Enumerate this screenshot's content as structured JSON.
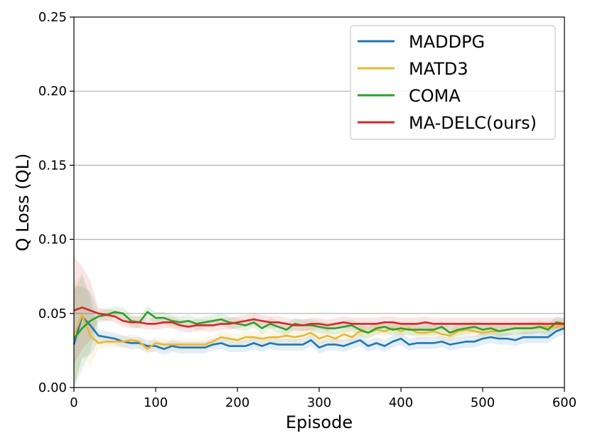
{
  "chart_data": {
    "type": "line",
    "xlabel": "Episode",
    "ylabel": "Q Loss (QL)",
    "xlim": [
      0,
      600
    ],
    "ylim": [
      0,
      0.25
    ],
    "xticks": [
      0,
      100,
      200,
      300,
      400,
      500,
      600
    ],
    "xtick_labels": [
      "0",
      "100",
      "200",
      "300",
      "400",
      "500",
      "600"
    ],
    "yticks": [
      0.0,
      0.05,
      0.1,
      0.15,
      0.2,
      0.25
    ],
    "ytick_labels": [
      "0.00",
      "0.05",
      "0.10",
      "0.15",
      "0.20",
      "0.25"
    ],
    "grid": "horizontal",
    "legend_position": "top-right",
    "x": [
      0,
      10,
      20,
      30,
      40,
      50,
      60,
      70,
      80,
      90,
      100,
      110,
      120,
      130,
      140,
      150,
      160,
      170,
      180,
      190,
      200,
      210,
      220,
      230,
      240,
      250,
      260,
      270,
      280,
      290,
      300,
      310,
      320,
      330,
      340,
      350,
      360,
      370,
      380,
      390,
      400,
      410,
      420,
      430,
      440,
      450,
      460,
      470,
      480,
      490,
      500,
      510,
      520,
      530,
      540,
      550,
      560,
      570,
      580,
      590,
      600
    ],
    "series": [
      {
        "name": "MADDPG",
        "color": "#1f77b4",
        "values": [
          0.029,
          0.048,
          0.042,
          0.035,
          0.034,
          0.033,
          0.031,
          0.03,
          0.03,
          0.028,
          0.028,
          0.026,
          0.028,
          0.027,
          0.027,
          0.027,
          0.027,
          0.029,
          0.03,
          0.028,
          0.028,
          0.028,
          0.03,
          0.028,
          0.03,
          0.029,
          0.029,
          0.029,
          0.029,
          0.032,
          0.027,
          0.029,
          0.029,
          0.028,
          0.03,
          0.032,
          0.028,
          0.03,
          0.028,
          0.031,
          0.033,
          0.029,
          0.03,
          0.03,
          0.03,
          0.031,
          0.029,
          0.03,
          0.031,
          0.031,
          0.033,
          0.034,
          0.033,
          0.033,
          0.032,
          0.034,
          0.034,
          0.034,
          0.034,
          0.038,
          0.04
        ]
      },
      {
        "name": "MATD3",
        "color": "#ebb630",
        "values": [
          0.035,
          0.049,
          0.035,
          0.03,
          0.031,
          0.031,
          0.031,
          0.032,
          0.031,
          0.026,
          0.03,
          0.029,
          0.029,
          0.029,
          0.029,
          0.029,
          0.029,
          0.031,
          0.034,
          0.033,
          0.032,
          0.034,
          0.034,
          0.033,
          0.034,
          0.034,
          0.035,
          0.034,
          0.035,
          0.037,
          0.033,
          0.035,
          0.033,
          0.036,
          0.034,
          0.038,
          0.037,
          0.039,
          0.038,
          0.04,
          0.038,
          0.04,
          0.037,
          0.037,
          0.038,
          0.036,
          0.035,
          0.038,
          0.039,
          0.038,
          0.037,
          0.038,
          0.038,
          0.039,
          0.04,
          0.04,
          0.04,
          0.041,
          0.041,
          0.041,
          0.042
        ]
      },
      {
        "name": "COMA",
        "color": "#2ca02c",
        "values": [
          0.033,
          0.04,
          0.045,
          0.048,
          0.049,
          0.051,
          0.05,
          0.045,
          0.044,
          0.051,
          0.047,
          0.047,
          0.045,
          0.044,
          0.045,
          0.043,
          0.044,
          0.045,
          0.046,
          0.044,
          0.043,
          0.042,
          0.044,
          0.04,
          0.043,
          0.041,
          0.039,
          0.043,
          0.042,
          0.042,
          0.041,
          0.04,
          0.04,
          0.041,
          0.042,
          0.039,
          0.037,
          0.04,
          0.041,
          0.039,
          0.04,
          0.039,
          0.039,
          0.039,
          0.039,
          0.041,
          0.037,
          0.039,
          0.04,
          0.041,
          0.039,
          0.04,
          0.038,
          0.039,
          0.04,
          0.04,
          0.04,
          0.041,
          0.039,
          0.044,
          0.043
        ]
      },
      {
        "name": "MA-DELC(ours)",
        "color": "#d62728",
        "values": [
          0.052,
          0.054,
          0.052,
          0.05,
          0.049,
          0.048,
          0.045,
          0.044,
          0.044,
          0.043,
          0.043,
          0.044,
          0.044,
          0.042,
          0.041,
          0.042,
          0.042,
          0.042,
          0.043,
          0.043,
          0.044,
          0.045,
          0.046,
          0.045,
          0.044,
          0.044,
          0.043,
          0.042,
          0.042,
          0.043,
          0.043,
          0.042,
          0.043,
          0.044,
          0.043,
          0.043,
          0.043,
          0.043,
          0.044,
          0.044,
          0.043,
          0.043,
          0.043,
          0.044,
          0.043,
          0.043,
          0.043,
          0.043,
          0.043,
          0.043,
          0.043,
          0.043,
          0.043,
          0.043,
          0.043,
          0.043,
          0.043,
          0.043,
          0.043,
          0.043,
          0.043
        ]
      }
    ]
  }
}
